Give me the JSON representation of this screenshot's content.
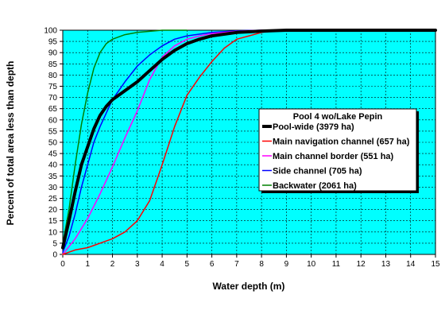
{
  "chart_data": {
    "type": "line",
    "title": "",
    "xlabel": "Water depth (m)",
    "ylabel": "Percent of total area less than depth",
    "xlim": [
      0,
      15
    ],
    "ylim": [
      0,
      100
    ],
    "x_ticks": [
      0,
      1,
      2,
      3,
      4,
      5,
      6,
      7,
      8,
      9,
      10,
      11,
      12,
      13,
      14,
      15
    ],
    "y_ticks": [
      0,
      5,
      10,
      15,
      20,
      25,
      30,
      35,
      40,
      45,
      50,
      55,
      60,
      65,
      70,
      75,
      80,
      85,
      90,
      95,
      100
    ],
    "grid": true,
    "plot_background": "#00ffff",
    "legend_placement": "right",
    "legend_title": "Pool 4 wo/Lake Pepin",
    "series": [
      {
        "name": "Pool-wide (3979 ha)",
        "color": "#000000",
        "width": 4,
        "points": [
          [
            0,
            3
          ],
          [
            0.25,
            15
          ],
          [
            0.5,
            28
          ],
          [
            0.75,
            40
          ],
          [
            1,
            48
          ],
          [
            1.25,
            56
          ],
          [
            1.5,
            62
          ],
          [
            1.75,
            66
          ],
          [
            2,
            69
          ],
          [
            2.5,
            73
          ],
          [
            3,
            77
          ],
          [
            3.5,
            82
          ],
          [
            4,
            87
          ],
          [
            4.5,
            91
          ],
          [
            5,
            94
          ],
          [
            5.5,
            96
          ],
          [
            6,
            97.5
          ],
          [
            7,
            99
          ],
          [
            8,
            99.6
          ],
          [
            9,
            100
          ],
          [
            15,
            100
          ]
        ]
      },
      {
        "name": "Main navigation channel (657 ha)",
        "color": "#ff0000",
        "width": 1.5,
        "points": [
          [
            0,
            0
          ],
          [
            0.5,
            2
          ],
          [
            1,
            3
          ],
          [
            1.5,
            5
          ],
          [
            2,
            7
          ],
          [
            2.5,
            10
          ],
          [
            3,
            15
          ],
          [
            3.5,
            24
          ],
          [
            4,
            40
          ],
          [
            4.5,
            57
          ],
          [
            5,
            71
          ],
          [
            5.5,
            79
          ],
          [
            6,
            86
          ],
          [
            6.5,
            92
          ],
          [
            7,
            96
          ],
          [
            7.5,
            97.5
          ],
          [
            8,
            99
          ],
          [
            8.5,
            99.6
          ],
          [
            9,
            100
          ],
          [
            15,
            100
          ]
        ]
      },
      {
        "name": "Main channel border (551 ha)",
        "color": "#ff00ff",
        "width": 1.5,
        "points": [
          [
            0,
            0
          ],
          [
            0.5,
            7
          ],
          [
            1,
            16
          ],
          [
            1.5,
            27
          ],
          [
            2,
            39
          ],
          [
            2.5,
            52
          ],
          [
            3,
            64
          ],
          [
            3.5,
            78
          ],
          [
            4,
            88
          ],
          [
            4.5,
            93
          ],
          [
            5,
            96
          ],
          [
            5.5,
            97.5
          ],
          [
            6,
            98.5
          ],
          [
            7,
            99.5
          ],
          [
            8,
            100
          ],
          [
            15,
            100
          ]
        ]
      },
      {
        "name": "Side channel (705 ha)",
        "color": "#0000ff",
        "width": 1.5,
        "points": [
          [
            0,
            1
          ],
          [
            0.25,
            8
          ],
          [
            0.5,
            18
          ],
          [
            0.75,
            30
          ],
          [
            1,
            40
          ],
          [
            1.25,
            50
          ],
          [
            1.5,
            57
          ],
          [
            1.75,
            63
          ],
          [
            2,
            69
          ],
          [
            2.5,
            77
          ],
          [
            3,
            84
          ],
          [
            3.5,
            89
          ],
          [
            4,
            93
          ],
          [
            4.5,
            96
          ],
          [
            5,
            97.5
          ],
          [
            6,
            99
          ],
          [
            7,
            99.7
          ],
          [
            8,
            100
          ],
          [
            15,
            100
          ]
        ]
      },
      {
        "name": "Backwater (2061 ha)",
        "color": "#008000",
        "width": 1.5,
        "points": [
          [
            0,
            5
          ],
          [
            0.25,
            20
          ],
          [
            0.5,
            40
          ],
          [
            0.75,
            58
          ],
          [
            1,
            72
          ],
          [
            1.25,
            83
          ],
          [
            1.5,
            90
          ],
          [
            1.75,
            94
          ],
          [
            2,
            96
          ],
          [
            2.5,
            98
          ],
          [
            3,
            99
          ],
          [
            3.5,
            99.5
          ],
          [
            4,
            100
          ],
          [
            5,
            100
          ]
        ]
      }
    ]
  }
}
